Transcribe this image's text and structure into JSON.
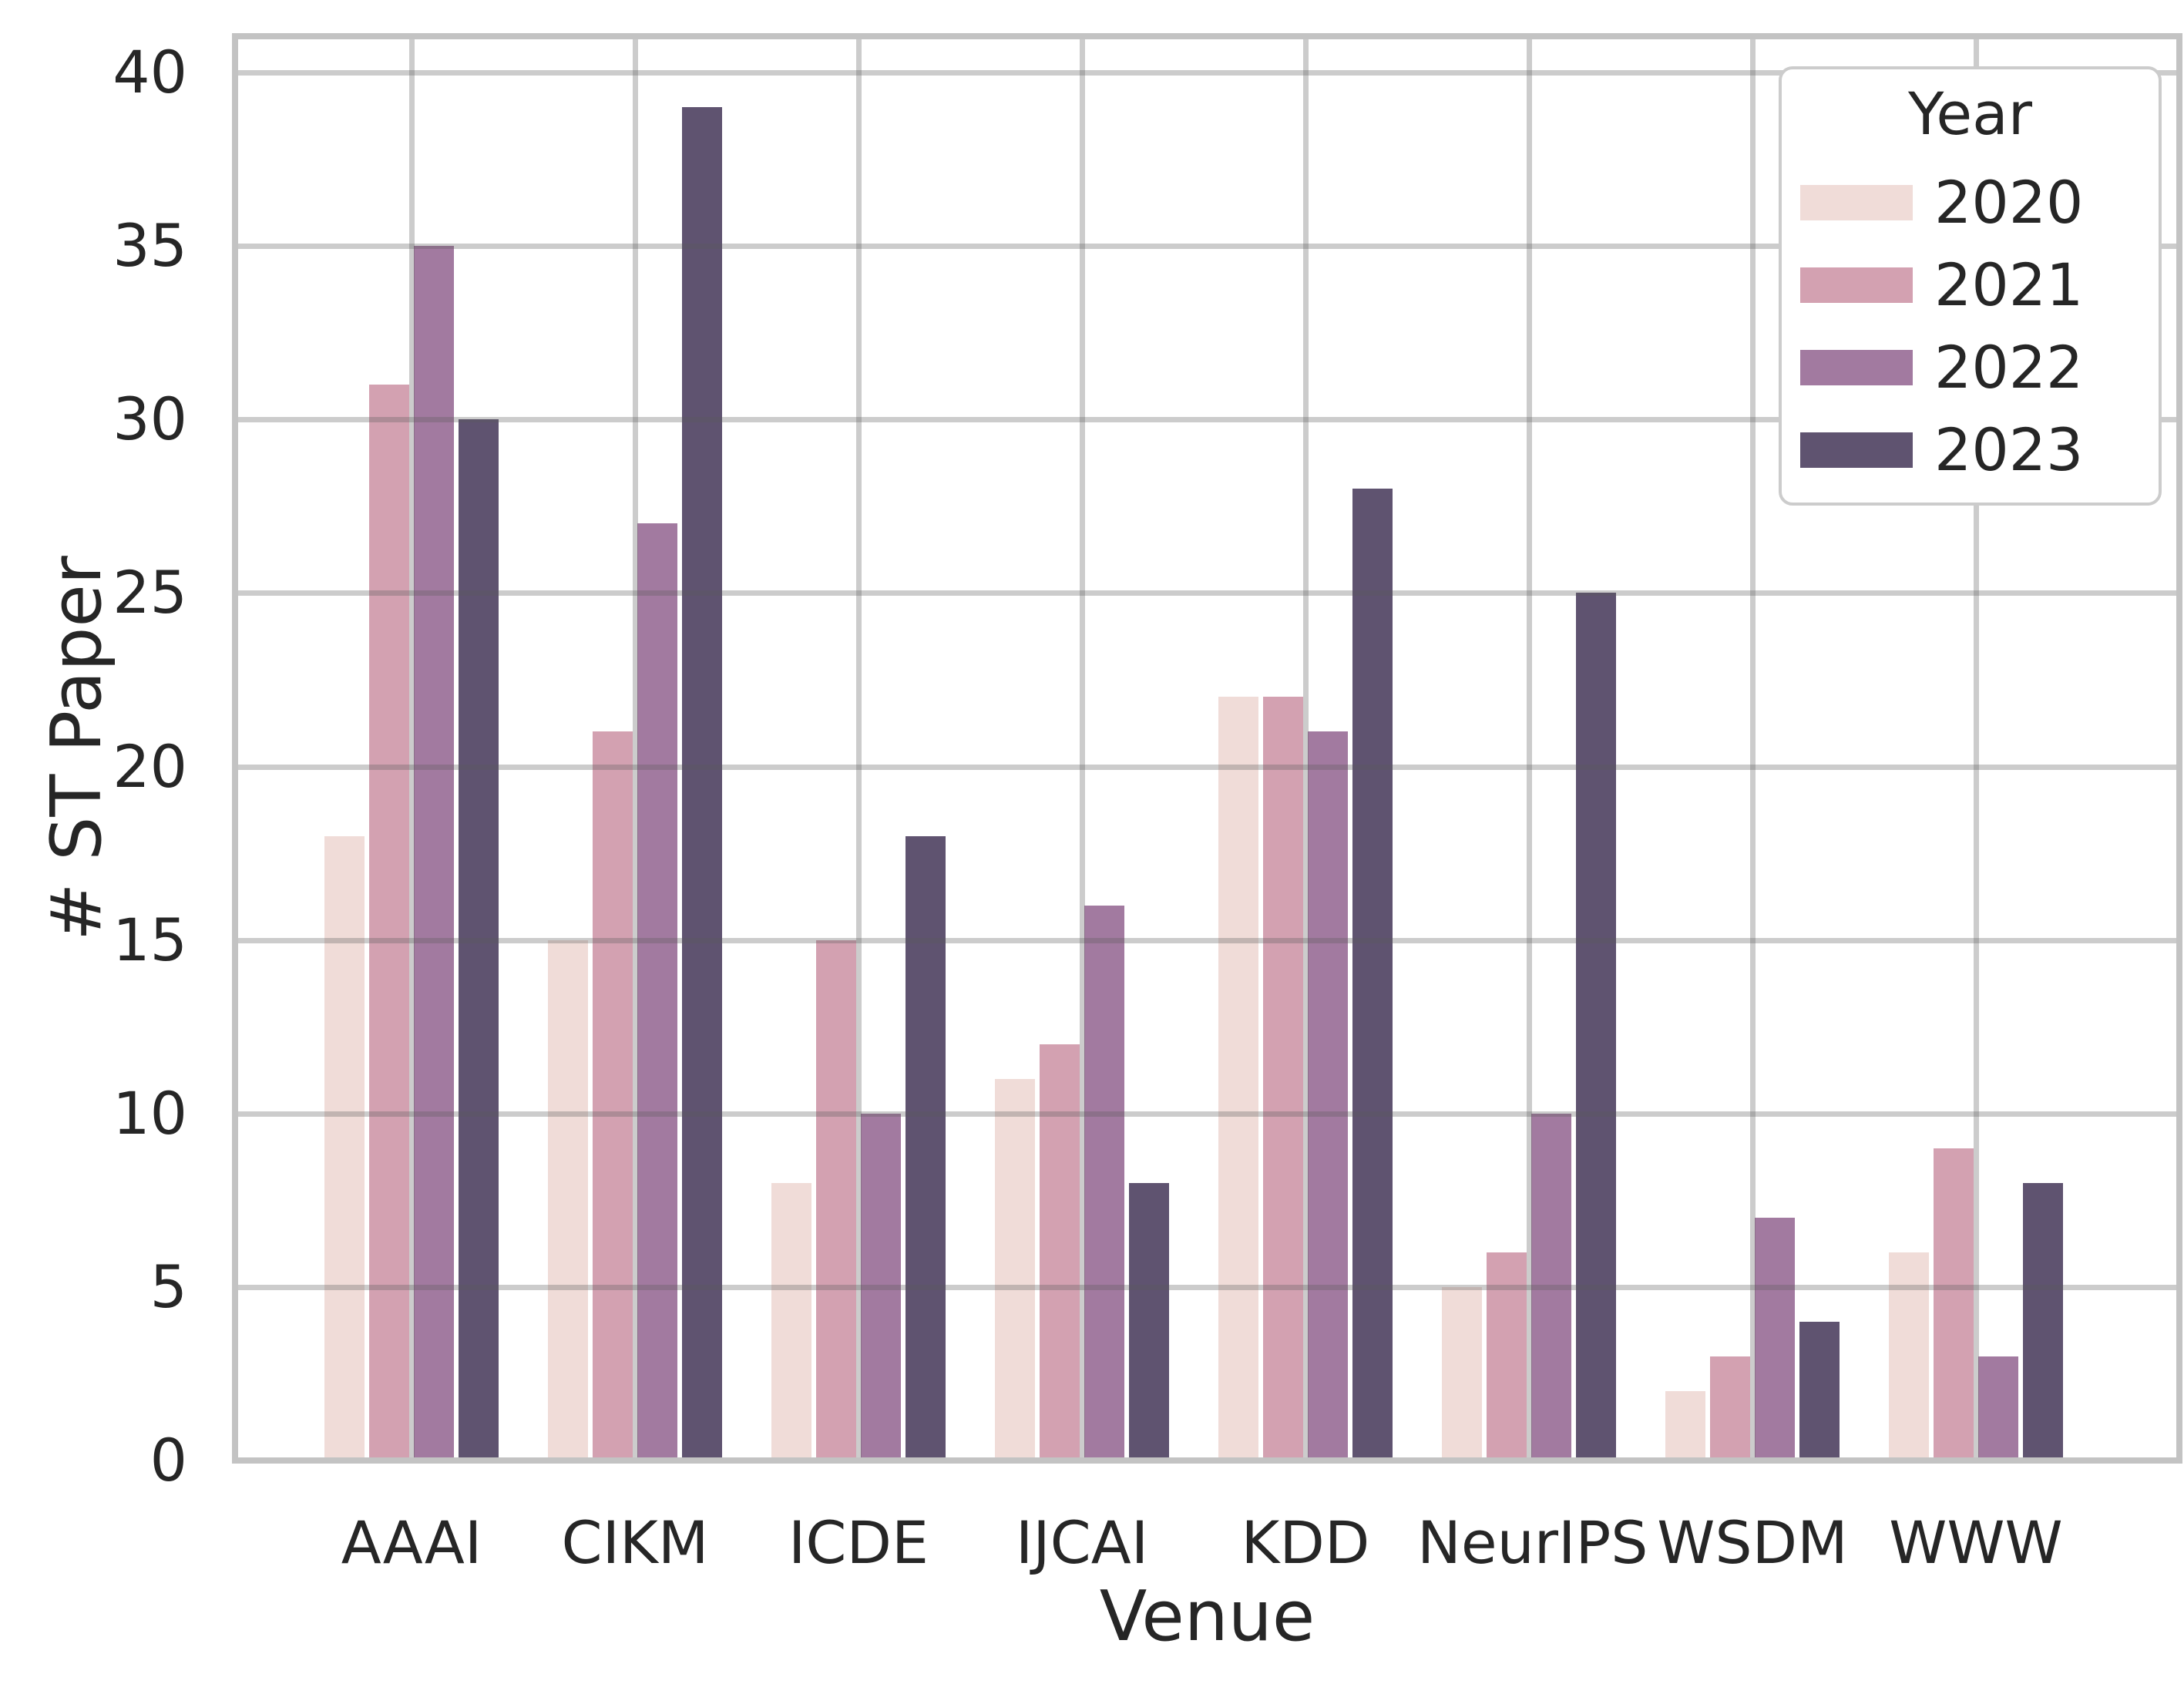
{
  "chart_data": {
    "type": "bar",
    "title": "",
    "xlabel": "Venue",
    "ylabel": "# ST Paper",
    "categories": [
      "AAAI",
      "CIKM",
      "ICDE",
      "IJCAI",
      "KDD",
      "NeurIPS",
      "WSDM",
      "WWW"
    ],
    "series": [
      {
        "name": "2020",
        "color": "#f0dcd8",
        "values": [
          18,
          15,
          8,
          11,
          22,
          5,
          2,
          6
        ]
      },
      {
        "name": "2021",
        "color": "#d3a1b1",
        "values": [
          31,
          21,
          15,
          12,
          22,
          6,
          3,
          9
        ]
      },
      {
        "name": "2022",
        "color": "#a27aa0",
        "values": [
          35,
          27,
          10,
          16,
          21,
          10,
          7,
          3
        ]
      },
      {
        "name": "2023",
        "color": "#5f5370",
        "values": [
          30,
          39,
          18,
          8,
          28,
          25,
          4,
          8
        ]
      }
    ],
    "yticks": [
      0,
      5,
      10,
      15,
      20,
      25,
      30,
      35,
      40
    ],
    "ylim": [
      0,
      41
    ],
    "grid": "on",
    "legend": {
      "title": "Year",
      "position": "upper right"
    }
  },
  "colors": {
    "grid": "#cbcbcb",
    "spine": "#c3c3c3",
    "text": "#262626",
    "background": "#ffffff"
  }
}
